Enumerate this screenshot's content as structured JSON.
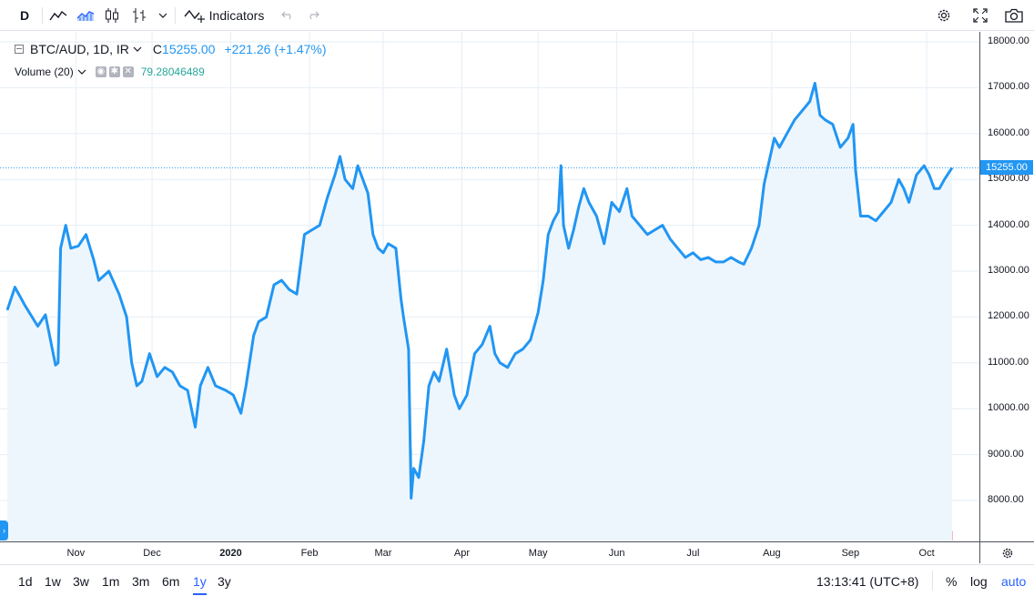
{
  "toolbar": {
    "interval": "D",
    "indicators_label": "Indicators"
  },
  "legend": {
    "symbol": "BTC/AUD, 1D, IR",
    "close_prefix": "C",
    "close": "15255.00",
    "change": "+221.26 (+1.47%)",
    "volume_label": "Volume (20)",
    "volume_value": "79.28046489"
  },
  "price_axis": {
    "labels": [
      "18000.00",
      "17000.00",
      "16000.00",
      "15000.00",
      "14000.00",
      "13000.00",
      "12000.00",
      "11000.00",
      "10000.00",
      "9000.00",
      "8000.00"
    ],
    "last_price": "15255.00"
  },
  "time_axis": {
    "labels": [
      "Nov",
      "Dec",
      "2020",
      "Feb",
      "Mar",
      "Apr",
      "May",
      "Jun",
      "Jul",
      "Aug",
      "Sep",
      "Oct"
    ]
  },
  "bottom": {
    "ranges": [
      "1d",
      "1w",
      "3w",
      "1m",
      "3m",
      "6m",
      "1y",
      "3y"
    ],
    "active_range": "1y",
    "clock": "13:13:41 (UTC+8)",
    "percent": "%",
    "log": "log",
    "auto": "auto"
  },
  "colors": {
    "line": "#2196f3",
    "area": "#eef6fd",
    "volume_up": "#a5dfca",
    "volume_down": "#f6b7be",
    "grid": "#e6eef6",
    "accent": "#2962ff"
  },
  "chart_data": {
    "type": "area",
    "symbol": "BTC/AUD",
    "interval": "1D",
    "y_range": [
      7400,
      18400
    ],
    "x_start": "2019-10-05",
    "x_end": "2020-10-11",
    "grid": true,
    "series": [
      {
        "name": "BTC/AUD",
        "points": [
          [
            "2019-10-05",
            12150
          ],
          [
            "2019-10-08",
            12650
          ],
          [
            "2019-10-12",
            12250
          ],
          [
            "2019-10-17",
            11800
          ],
          [
            "2019-10-20",
            12050
          ],
          [
            "2019-10-24",
            10950
          ],
          [
            "2019-10-25",
            11000
          ],
          [
            "2019-10-26",
            13500
          ],
          [
            "2019-10-28",
            14000
          ],
          [
            "2019-10-30",
            13500
          ],
          [
            "2019-11-02",
            13550
          ],
          [
            "2019-11-05",
            13800
          ],
          [
            "2019-11-08",
            13250
          ],
          [
            "2019-11-10",
            12800
          ],
          [
            "2019-11-14",
            13000
          ],
          [
            "2019-11-18",
            12500
          ],
          [
            "2019-11-21",
            12000
          ],
          [
            "2019-11-23",
            11000
          ],
          [
            "2019-11-25",
            10500
          ],
          [
            "2019-11-27",
            10600
          ],
          [
            "2019-11-30",
            11200
          ],
          [
            "2019-12-03",
            10700
          ],
          [
            "2019-12-06",
            10900
          ],
          [
            "2019-12-09",
            10800
          ],
          [
            "2019-12-12",
            10500
          ],
          [
            "2019-12-15",
            10400
          ],
          [
            "2019-12-18",
            9600
          ],
          [
            "2019-12-20",
            10500
          ],
          [
            "2019-12-23",
            10900
          ],
          [
            "2019-12-26",
            10500
          ],
          [
            "2019-12-30",
            10400
          ],
          [
            "2020-01-02",
            10300
          ],
          [
            "2020-01-05",
            9900
          ],
          [
            "2020-01-07",
            10500
          ],
          [
            "2020-01-10",
            11600
          ],
          [
            "2020-01-12",
            11900
          ],
          [
            "2020-01-15",
            12000
          ],
          [
            "2020-01-18",
            12700
          ],
          [
            "2020-01-21",
            12800
          ],
          [
            "2020-01-24",
            12600
          ],
          [
            "2020-01-27",
            12500
          ],
          [
            "2020-01-30",
            13800
          ],
          [
            "2020-02-02",
            13900
          ],
          [
            "2020-02-05",
            14000
          ],
          [
            "2020-02-08",
            14600
          ],
          [
            "2020-02-11",
            15100
          ],
          [
            "2020-02-13",
            15500
          ],
          [
            "2020-02-15",
            15000
          ],
          [
            "2020-02-18",
            14800
          ],
          [
            "2020-02-20",
            15300
          ],
          [
            "2020-02-24",
            14700
          ],
          [
            "2020-02-26",
            13800
          ],
          [
            "2020-02-28",
            13500
          ],
          [
            "2020-03-01",
            13400
          ],
          [
            "2020-03-03",
            13600
          ],
          [
            "2020-03-06",
            13500
          ],
          [
            "2020-03-08",
            12400
          ],
          [
            "2020-03-09",
            12000
          ],
          [
            "2020-03-11",
            11300
          ],
          [
            "2020-03-12",
            8050
          ],
          [
            "2020-03-13",
            8700
          ],
          [
            "2020-03-15",
            8500
          ],
          [
            "2020-03-17",
            9300
          ],
          [
            "2020-03-19",
            10500
          ],
          [
            "2020-03-21",
            10800
          ],
          [
            "2020-03-23",
            10600
          ],
          [
            "2020-03-26",
            11300
          ],
          [
            "2020-03-29",
            10300
          ],
          [
            "2020-03-31",
            10000
          ],
          [
            "2020-04-03",
            10300
          ],
          [
            "2020-04-06",
            11200
          ],
          [
            "2020-04-09",
            11400
          ],
          [
            "2020-04-12",
            11800
          ],
          [
            "2020-04-14",
            11200
          ],
          [
            "2020-04-16",
            11000
          ],
          [
            "2020-04-19",
            10900
          ],
          [
            "2020-04-22",
            11200
          ],
          [
            "2020-04-25",
            11300
          ],
          [
            "2020-04-28",
            11500
          ],
          [
            "2020-05-01",
            12100
          ],
          [
            "2020-05-03",
            12800
          ],
          [
            "2020-05-05",
            13800
          ],
          [
            "2020-05-07",
            14100
          ],
          [
            "2020-05-09",
            14300
          ],
          [
            "2020-05-10",
            15300
          ],
          [
            "2020-05-11",
            14000
          ],
          [
            "2020-05-13",
            13500
          ],
          [
            "2020-05-15",
            13900
          ],
          [
            "2020-05-17",
            14400
          ],
          [
            "2020-05-19",
            14800
          ],
          [
            "2020-05-21",
            14500
          ],
          [
            "2020-05-24",
            14200
          ],
          [
            "2020-05-27",
            13600
          ],
          [
            "2020-05-30",
            14500
          ],
          [
            "2020-06-02",
            14300
          ],
          [
            "2020-06-05",
            14800
          ],
          [
            "2020-06-07",
            14200
          ],
          [
            "2020-06-10",
            14000
          ],
          [
            "2020-06-13",
            13800
          ],
          [
            "2020-06-16",
            13900
          ],
          [
            "2020-06-19",
            14000
          ],
          [
            "2020-06-22",
            13700
          ],
          [
            "2020-06-25",
            13500
          ],
          [
            "2020-06-28",
            13300
          ],
          [
            "2020-07-01",
            13400
          ],
          [
            "2020-07-04",
            13250
          ],
          [
            "2020-07-07",
            13300
          ],
          [
            "2020-07-10",
            13200
          ],
          [
            "2020-07-13",
            13200
          ],
          [
            "2020-07-16",
            13300
          ],
          [
            "2020-07-19",
            13200
          ],
          [
            "2020-07-21",
            13150
          ],
          [
            "2020-07-24",
            13500
          ],
          [
            "2020-07-27",
            14000
          ],
          [
            "2020-07-29",
            14900
          ],
          [
            "2020-07-31",
            15400
          ],
          [
            "2020-08-02",
            15900
          ],
          [
            "2020-08-04",
            15700
          ],
          [
            "2020-08-07",
            16000
          ],
          [
            "2020-08-10",
            16300
          ],
          [
            "2020-08-13",
            16500
          ],
          [
            "2020-08-16",
            16700
          ],
          [
            "2020-08-18",
            17100
          ],
          [
            "2020-08-20",
            16400
          ],
          [
            "2020-08-22",
            16300
          ],
          [
            "2020-08-25",
            16200
          ],
          [
            "2020-08-28",
            15700
          ],
          [
            "2020-08-31",
            15900
          ],
          [
            "2020-09-02",
            16200
          ],
          [
            "2020-09-03",
            15200
          ],
          [
            "2020-09-05",
            14200
          ],
          [
            "2020-09-08",
            14200
          ],
          [
            "2020-09-11",
            14100
          ],
          [
            "2020-09-14",
            14300
          ],
          [
            "2020-09-17",
            14500
          ],
          [
            "2020-09-20",
            15000
          ],
          [
            "2020-09-22",
            14800
          ],
          [
            "2020-09-24",
            14500
          ],
          [
            "2020-09-27",
            15100
          ],
          [
            "2020-09-30",
            15300
          ],
          [
            "2020-10-02",
            15100
          ],
          [
            "2020-10-04",
            14800
          ],
          [
            "2020-10-06",
            14800
          ],
          [
            "2020-10-08",
            15000
          ],
          [
            "2020-10-11",
            15255
          ]
        ]
      }
    ]
  }
}
